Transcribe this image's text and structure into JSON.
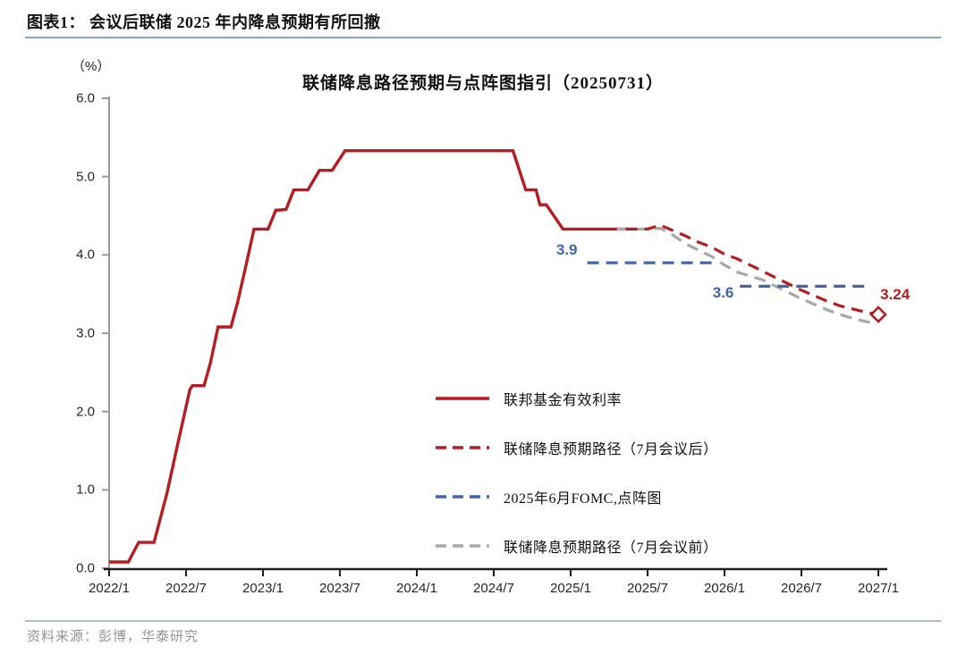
{
  "header": {
    "title": "图表1： 会议后联储 2025 年内降息预期有所回撤"
  },
  "source": {
    "text": "资料来源：彭博，华泰研究"
  },
  "chart_data": {
    "type": "line",
    "title": "联储降息路径预期与点阵图指引（20250731）",
    "unit_label": "（%）",
    "ylim": [
      0.0,
      6.0
    ],
    "x_unit": "months since 2022/1",
    "grid": false,
    "legend_position": "inside-lower-center",
    "y_ticks": [
      {
        "v": 0,
        "label": "0.0"
      },
      {
        "v": 1,
        "label": "1.0"
      },
      {
        "v": 2,
        "label": "2.0"
      },
      {
        "v": 3,
        "label": "3.0"
      },
      {
        "v": 4,
        "label": "4.0"
      },
      {
        "v": 5,
        "label": "5.0"
      },
      {
        "v": 6,
        "label": "6.0"
      }
    ],
    "x_ticks": [
      {
        "t": 0,
        "label": "2022/1"
      },
      {
        "t": 6,
        "label": "2022/7"
      },
      {
        "t": 12,
        "label": "2023/1"
      },
      {
        "t": 18,
        "label": "2023/7"
      },
      {
        "t": 24,
        "label": "2024/1"
      },
      {
        "t": 30,
        "label": "2024/7"
      },
      {
        "t": 36,
        "label": "2025/1"
      },
      {
        "t": 42,
        "label": "2025/7"
      },
      {
        "t": 48,
        "label": "2026/1"
      },
      {
        "t": 54,
        "label": "2026/7"
      },
      {
        "t": 60,
        "label": "2027/1"
      }
    ],
    "series": [
      {
        "name": "联邦基金有效利率",
        "color": "#b51d22",
        "style": "solid",
        "width": 3.4,
        "segments": [
          [
            [
              0,
              0.08
            ],
            [
              1.5,
              0.08
            ],
            [
              2.3,
              0.33
            ],
            [
              3.5,
              0.33
            ],
            [
              4.5,
              0.95
            ],
            [
              5.3,
              1.55
            ],
            [
              6.3,
              2.28
            ],
            [
              6.5,
              2.33
            ],
            [
              7.4,
              2.33
            ],
            [
              7.9,
              2.62
            ],
            [
              8.5,
              3.08
            ],
            [
              9.5,
              3.08
            ],
            [
              10.0,
              3.38
            ],
            [
              10.6,
              3.81
            ],
            [
              11.3,
              4.33
            ],
            [
              12.4,
              4.33
            ],
            [
              13.0,
              4.57
            ],
            [
              13.8,
              4.58
            ],
            [
              14.4,
              4.83
            ],
            [
              15.5,
              4.83
            ],
            [
              16.4,
              5.08
            ],
            [
              17.4,
              5.08
            ],
            [
              18.4,
              5.33
            ],
            [
              31.5,
              5.33
            ],
            [
              32.5,
              4.83
            ],
            [
              33.3,
              4.83
            ],
            [
              33.6,
              4.64
            ],
            [
              34.1,
              4.64
            ],
            [
              35.4,
              4.33
            ],
            [
              40.5,
              4.33
            ]
          ]
        ]
      },
      {
        "name": "联储降息预期路径（7月会议前）",
        "color": "#a8a8a8",
        "style": "dashed",
        "width": 3.2,
        "segments": [
          [
            [
              39.6,
              4.33
            ],
            [
              42,
              4.33
            ],
            [
              43,
              4.34
            ],
            [
              44,
              4.25
            ],
            [
              45,
              4.14
            ],
            [
              46,
              4.06
            ],
            [
              47,
              3.98
            ],
            [
              48,
              3.87
            ],
            [
              49,
              3.78
            ],
            [
              50,
              3.73
            ],
            [
              51,
              3.68
            ],
            [
              52,
              3.6
            ],
            [
              53,
              3.52
            ],
            [
              54,
              3.44
            ],
            [
              55,
              3.37
            ],
            [
              56,
              3.3
            ],
            [
              57,
              3.24
            ],
            [
              58,
              3.19
            ],
            [
              59,
              3.15
            ],
            [
              59.9,
              3.12
            ]
          ]
        ]
      },
      {
        "name": "2025年6月FOMC,点阵图",
        "color": "#4266ac",
        "style": "dashed",
        "width": 3.2,
        "segments": [
          [
            [
              37.3,
              3.9
            ],
            [
              47.1,
              3.9
            ]
          ],
          [
            [
              49.2,
              3.6
            ],
            [
              59.1,
              3.6
            ]
          ]
        ]
      },
      {
        "name": "联储降息预期路径（7月会议后）",
        "color": "#b51d22",
        "style": "dashed",
        "width": 3.2,
        "segments": [
          [
            [
              40.3,
              4.33
            ],
            [
              42,
              4.33
            ],
            [
              43,
              4.38
            ],
            [
              44,
              4.31
            ],
            [
              45,
              4.24
            ],
            [
              46,
              4.16
            ],
            [
              47,
              4.1
            ],
            [
              48,
              4.01
            ],
            [
              49,
              3.95
            ],
            [
              50,
              3.87
            ],
            [
              51,
              3.79
            ],
            [
              52,
              3.71
            ],
            [
              53,
              3.63
            ],
            [
              54,
              3.55
            ],
            [
              55,
              3.48
            ],
            [
              56,
              3.41
            ],
            [
              57,
              3.35
            ],
            [
              58,
              3.31
            ],
            [
              59,
              3.27
            ],
            [
              60,
              3.24
            ]
          ]
        ]
      }
    ],
    "end_marker": {
      "shape": "diamond",
      "t": 60,
      "v": 3.24,
      "color": "#b51d22"
    },
    "annotations": [
      {
        "text": "3.9",
        "t": 35.7,
        "v": 4.06,
        "color": "#4266ac"
      },
      {
        "text": "3.6",
        "t": 47.9,
        "v": 3.51,
        "color": "#4266ac"
      },
      {
        "text": "3.24",
        "t": 61.3,
        "v": 3.49,
        "color": "#b51d22"
      }
    ]
  },
  "legend": {
    "items": [
      {
        "label": "联邦基金有效利率",
        "color": "#b51d22",
        "style": "solid"
      },
      {
        "label": "联储降息预期路径（7月会议后）",
        "color": "#b51d22",
        "style": "dashed"
      },
      {
        "label": "2025年6月FOMC,点阵图",
        "color": "#4266ac",
        "style": "dashed"
      },
      {
        "label": "联储降息预期路径（7月会议前）",
        "color": "#a8a8a8",
        "style": "dashed"
      }
    ]
  }
}
